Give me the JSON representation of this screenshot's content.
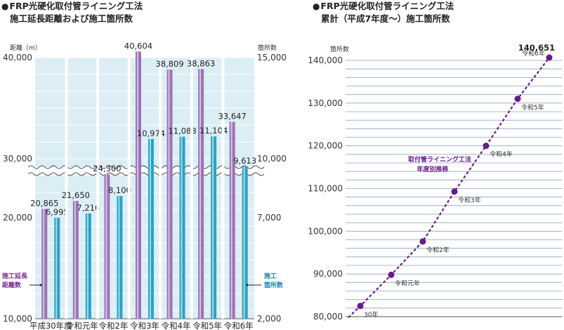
{
  "headings": {
    "left_line1": "FRP光硬化取付管ライニング工法",
    "left_line2": "施工延長距離および施工箇所数",
    "right_line1": "FRP光硬化取付管ライニング工法",
    "right_line2": "累計（平成7年度〜）施工箇所数"
  },
  "colors": {
    "plot_bg": "#dceef5",
    "gridline": "#ffffff",
    "right_gridline": "#8aa6c8",
    "distance_bar": "#9b74b8",
    "count_bar": "#2aa3c4",
    "cumulative_line": "#6a1a8a",
    "legend_distance": "#7a2d91",
    "legend_count": "#1f86ad"
  },
  "chart_data": [
    {
      "type": "bar",
      "axis_break": true,
      "categories": [
        "平成30年度",
        "令和元年",
        "令和2年",
        "令和3年",
        "令和4年",
        "令和5年",
        "令和6年"
      ],
      "y_left_label": "距離（m）",
      "y_right_label": "箇所数",
      "y_left_ticks": [
        "40,000",
        "30,000",
        "20,000",
        "10,000"
      ],
      "y_right_ticks": [
        "15,000",
        "10,000",
        "7,000",
        "2,000"
      ],
      "series": [
        {
          "name": "施工延長距離数",
          "axis": "left",
          "values": [
            20865,
            21650,
            24300,
            40604,
            38809,
            38863,
            33647
          ],
          "labels": [
            "20,865",
            "21,650",
            "24,300",
            "40,604",
            "38,809",
            "38,863",
            "33,647"
          ]
        },
        {
          "name": "施工箇所数",
          "axis": "right",
          "values": [
            6995,
            7216,
            8100,
            10974,
            11088,
            11104,
            9613
          ],
          "labels": [
            "6,995",
            "7,216",
            "8,100",
            "10,974",
            "11,088",
            "11,104",
            "9,613"
          ]
        }
      ],
      "legend": {
        "distance_line1": "施工延長",
        "distance_line2": "距離数",
        "count_line1": "施工",
        "count_line2": "箇所数"
      },
      "grid": true
    },
    {
      "type": "line",
      "y_label": "箇所数",
      "ylim": [
        80000,
        140651
      ],
      "y_ticks": [
        "80,000",
        "90,000",
        "100,000",
        "110,000",
        "120,000",
        "130,000",
        "140,000"
      ],
      "y_tick_values": [
        80000,
        90000,
        100000,
        110000,
        120000,
        130000,
        140000
      ],
      "annotation": {
        "line1": "取付管ライニング工法",
        "line2": "年度別推移"
      },
      "points": [
        {
          "label": "30年",
          "value": 82500
        },
        {
          "label": "令和元年",
          "value": 89800
        },
        {
          "label": "令和2年",
          "value": 97600
        },
        {
          "label": "令和3年",
          "value": 109300
        },
        {
          "label": "令和4年",
          "value": 120000
        },
        {
          "label": "令和5年",
          "value": 131000
        },
        {
          "label": "令和6年",
          "value": 140651,
          "value_label": "140,651"
        }
      ],
      "grid": true
    }
  ]
}
